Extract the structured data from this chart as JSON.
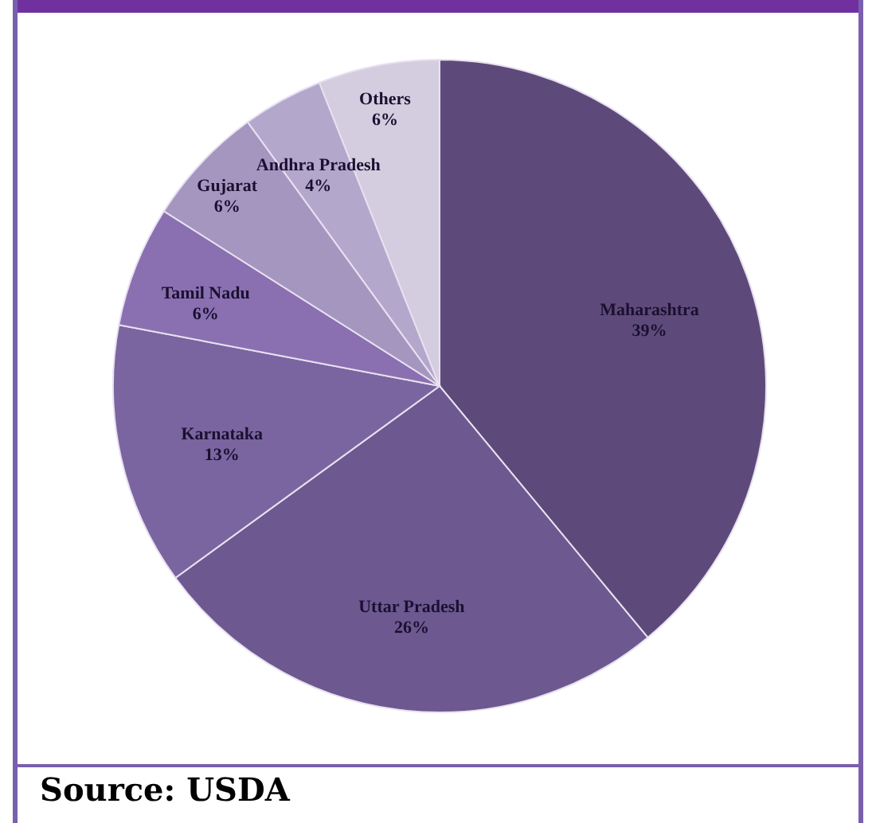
{
  "chart_data": {
    "type": "pie",
    "categories": [
      "Maharashtra",
      "Uttar Pradesh",
      "Karnataka",
      "Tamil Nadu",
      "Gujarat",
      "Andhra Pradesh",
      "Others"
    ],
    "values": [
      39,
      26,
      13,
      6,
      6,
      4,
      6
    ],
    "value_labels": [
      "39%",
      "26%",
      "13%",
      "6%",
      "6%",
      "4%",
      "6%"
    ],
    "colors": [
      "#5e4a7a",
      "#6d5890",
      "#7a65a0",
      "#8a70b0",
      "#a596c0",
      "#b3a8cc",
      "#d4cde0"
    ],
    "legend": false,
    "annotations": [
      "Source: USDA"
    ]
  }
}
